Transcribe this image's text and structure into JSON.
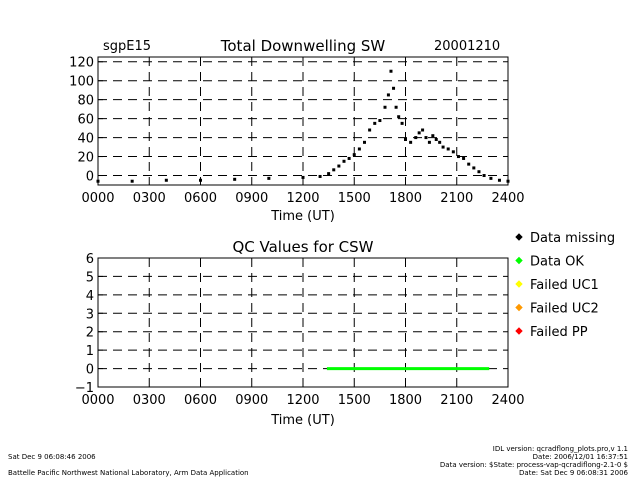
{
  "header": {
    "station": "sgpE15",
    "date": "20001210"
  },
  "chart_data": [
    {
      "type": "scatter",
      "title": "Total Downwelling SW",
      "xlabel": "Time (UT)",
      "ylabel": "",
      "xlim": [
        0,
        2400
      ],
      "ylim": [
        -10,
        125
      ],
      "x_ticks": [
        0,
        300,
        600,
        900,
        1200,
        1500,
        1800,
        2100,
        2400
      ],
      "x_tick_labels": [
        "0000",
        "0300",
        "0600",
        "0900",
        "1200",
        "1500",
        "1800",
        "2100",
        "2400"
      ],
      "y_ticks": [
        0,
        20,
        40,
        60,
        80,
        100,
        120
      ],
      "y_tick_labels": [
        "0",
        "20",
        "40",
        "60",
        "80",
        "100",
        "120"
      ],
      "grid": "dashed",
      "series": [
        {
          "color": "#000000",
          "x": [
            0,
            200,
            400,
            600,
            800,
            1000,
            1200,
            1300,
            1350,
            1380,
            1410,
            1440,
            1470,
            1500,
            1530,
            1560,
            1590,
            1620,
            1650,
            1680,
            1700,
            1715,
            1730,
            1745,
            1760,
            1780,
            1800,
            1830,
            1860,
            1880,
            1900,
            1920,
            1940,
            1960,
            1980,
            2000,
            2020,
            2050,
            2080,
            2110,
            2140,
            2170,
            2200,
            2230,
            2260,
            2300,
            2350,
            2400
          ],
          "y": [
            -6,
            -6,
            -5,
            -5,
            -4,
            -3,
            -2,
            -1,
            2,
            6,
            10,
            15,
            18,
            22,
            28,
            35,
            48,
            55,
            58,
            72,
            85,
            110,
            92,
            72,
            62,
            55,
            38,
            35,
            40,
            45,
            48,
            40,
            35,
            42,
            38,
            35,
            30,
            28,
            25,
            20,
            18,
            12,
            8,
            4,
            0,
            -3,
            -5,
            -6
          ]
        }
      ]
    },
    {
      "type": "line",
      "title": "QC Values for CSW",
      "xlabel": "Time (UT)",
      "ylabel": "",
      "xlim": [
        0,
        2400
      ],
      "ylim": [
        -1,
        6
      ],
      "x_ticks": [
        0,
        300,
        600,
        900,
        1200,
        1500,
        1800,
        2100,
        2400
      ],
      "x_tick_labels": [
        "0000",
        "0300",
        "0600",
        "0900",
        "1200",
        "1500",
        "1800",
        "2100",
        "2400"
      ],
      "y_ticks": [
        -1,
        0,
        1,
        2,
        3,
        4,
        5,
        6
      ],
      "y_tick_labels": [
        "−1",
        "0",
        "1",
        "2",
        "3",
        "4",
        "5",
        "6"
      ],
      "grid": "dashed",
      "series": [
        {
          "color": "#00ff00",
          "x": [
            1340,
            2290
          ],
          "y": [
            0,
            0
          ]
        }
      ],
      "legend": {
        "position": "right",
        "entries": [
          {
            "label": "Data missing",
            "color": "#000000"
          },
          {
            "label": "Data OK",
            "color": "#00ff00"
          },
          {
            "label": "Failed UC1",
            "color": "#ffff00"
          },
          {
            "label": "Failed UC2",
            "color": "#ff9900"
          },
          {
            "label": "Failed PP",
            "color": "#ff0000"
          }
        ]
      }
    }
  ],
  "footer": {
    "run_date": "Sat Dec  9 06:08:46 2006",
    "lab": "Battelle Pacific Northwest National Laboratory, Arm Data Application",
    "idl_version": "IDL version: qcradflong_plots.pro,v 1.1",
    "idl_date": "Date: 2006/12/01 16:37:51",
    "data_version": "Data version: $State: process-vap-qcradiflong-2.1-0 $",
    "data_date": "Date: Sat Dec  9 06:08:31 2006"
  }
}
